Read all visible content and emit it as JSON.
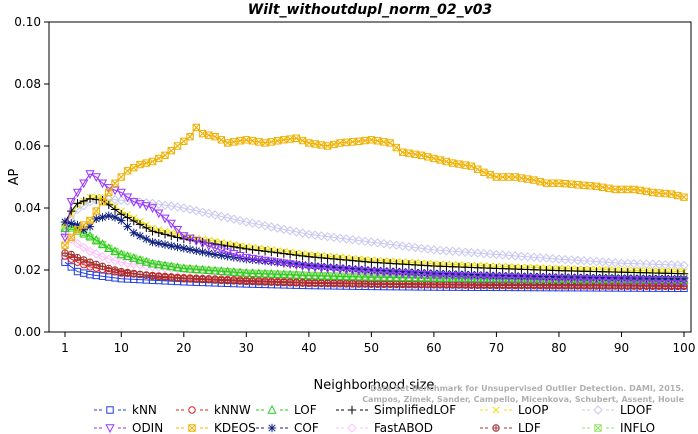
{
  "chart_data": {
    "type": "line",
    "title": "Wilt_withoutdupl_norm_02_v03",
    "xlabel": "Neighborhood size",
    "ylabel": "AP",
    "xlim": [
      1,
      100
    ],
    "ylim": [
      0.0,
      0.1
    ],
    "xticks": [
      1,
      10,
      20,
      30,
      40,
      50,
      60,
      70,
      80,
      90,
      100
    ],
    "yticks": [
      "0.00",
      "0.02",
      "0.04",
      "0.06",
      "0.08",
      "0.10"
    ],
    "grid": false,
    "legend_position": "bottom",
    "series": [
      {
        "name": "kNN",
        "color": "#1f3fe0",
        "marker": "square",
        "points": [
          [
            1,
            0.0225
          ],
          [
            2,
            0.021
          ],
          [
            3,
            0.0195
          ],
          [
            5,
            0.0185
          ],
          [
            10,
            0.0172
          ],
          [
            20,
            0.0162
          ],
          [
            30,
            0.0155
          ],
          [
            40,
            0.015
          ],
          [
            50,
            0.0147
          ],
          [
            60,
            0.0145
          ],
          [
            70,
            0.0144
          ],
          [
            80,
            0.0143
          ],
          [
            90,
            0.0142
          ],
          [
            100,
            0.0141
          ]
        ]
      },
      {
        "name": "kNNW",
        "color": "#e02020",
        "marker": "circle",
        "points": [
          [
            1,
            0.0245
          ],
          [
            2,
            0.0235
          ],
          [
            3,
            0.0225
          ],
          [
            5,
            0.021
          ],
          [
            10,
            0.019
          ],
          [
            20,
            0.0175
          ],
          [
            30,
            0.0167
          ],
          [
            40,
            0.016
          ],
          [
            50,
            0.0157
          ],
          [
            60,
            0.0155
          ],
          [
            70,
            0.0153
          ],
          [
            80,
            0.0152
          ],
          [
            90,
            0.0151
          ],
          [
            100,
            0.015
          ]
        ]
      },
      {
        "name": "LOF",
        "color": "#22cc22",
        "marker": "triangle",
        "points": [
          [
            1,
            0.0335
          ],
          [
            2,
            0.034
          ],
          [
            3,
            0.033
          ],
          [
            5,
            0.031
          ],
          [
            8,
            0.027
          ],
          [
            10,
            0.025
          ],
          [
            15,
            0.022
          ],
          [
            20,
            0.0205
          ],
          [
            30,
            0.019
          ],
          [
            40,
            0.0182
          ],
          [
            50,
            0.0177
          ],
          [
            60,
            0.0174
          ],
          [
            70,
            0.0172
          ],
          [
            80,
            0.017
          ],
          [
            90,
            0.0169
          ],
          [
            100,
            0.0168
          ]
        ]
      },
      {
        "name": "SimplifiedLOF",
        "color": "#000000",
        "marker": "plus",
        "points": [
          [
            1,
            0.0355
          ],
          [
            2,
            0.039
          ],
          [
            3,
            0.0415
          ],
          [
            5,
            0.043
          ],
          [
            7,
            0.0425
          ],
          [
            10,
            0.038
          ],
          [
            15,
            0.0325
          ],
          [
            20,
            0.03
          ],
          [
            30,
            0.0268
          ],
          [
            40,
            0.0243
          ],
          [
            50,
            0.0225
          ],
          [
            60,
            0.0213
          ],
          [
            70,
            0.0205
          ],
          [
            80,
            0.0198
          ],
          [
            90,
            0.0193
          ],
          [
            100,
            0.0188
          ]
        ]
      },
      {
        "name": "LoOP",
        "color": "#f0e000",
        "marker": "x",
        "points": [
          [
            1,
            0.0345
          ],
          [
            2,
            0.038
          ],
          [
            3,
            0.041
          ],
          [
            5,
            0.0435
          ],
          [
            7,
            0.0435
          ],
          [
            10,
            0.039
          ],
          [
            15,
            0.0335
          ],
          [
            20,
            0.031
          ],
          [
            30,
            0.0275
          ],
          [
            40,
            0.025
          ],
          [
            50,
            0.0232
          ],
          [
            60,
            0.022
          ],
          [
            70,
            0.0212
          ],
          [
            80,
            0.0205
          ],
          [
            90,
            0.02
          ],
          [
            100,
            0.0195
          ]
        ]
      },
      {
        "name": "LDOF",
        "color": "#c8c8f0",
        "marker": "diamond",
        "points": [
          [
            1,
            0.032
          ],
          [
            2,
            0.036
          ],
          [
            3,
            0.0395
          ],
          [
            5,
            0.042
          ],
          [
            7,
            0.043
          ],
          [
            10,
            0.0425
          ],
          [
            15,
            0.0415
          ],
          [
            20,
            0.04
          ],
          [
            30,
            0.0355
          ],
          [
            40,
            0.0315
          ],
          [
            50,
            0.029
          ],
          [
            60,
            0.0265
          ],
          [
            70,
            0.025
          ],
          [
            80,
            0.0235
          ],
          [
            90,
            0.0222
          ],
          [
            100,
            0.0215
          ]
        ]
      },
      {
        "name": "ODIN",
        "color": "#9933ff",
        "marker": "triangle-down",
        "points": [
          [
            1,
            0.0305
          ],
          [
            2,
            0.042
          ],
          [
            3,
            0.045
          ],
          [
            4,
            0.048
          ],
          [
            5,
            0.051
          ],
          [
            6,
            0.05
          ],
          [
            7,
            0.048
          ],
          [
            8,
            0.0465
          ],
          [
            10,
            0.045
          ],
          [
            12,
            0.042
          ],
          [
            15,
            0.04
          ],
          [
            18,
            0.035
          ],
          [
            20,
            0.031
          ],
          [
            25,
            0.027
          ],
          [
            30,
            0.024
          ],
          [
            40,
            0.021
          ],
          [
            50,
            0.0195
          ],
          [
            60,
            0.0183
          ],
          [
            70,
            0.0177
          ],
          [
            80,
            0.0172
          ],
          [
            90,
            0.0168
          ],
          [
            100,
            0.0165
          ]
        ]
      },
      {
        "name": "KDEOS",
        "color": "#f0b000",
        "marker": "square-x",
        "points": [
          [
            1,
            0.028
          ],
          [
            3,
            0.033
          ],
          [
            5,
            0.036
          ],
          [
            7,
            0.042
          ],
          [
            9,
            0.048
          ],
          [
            11,
            0.052
          ],
          [
            13,
            0.054
          ],
          [
            15,
            0.055
          ],
          [
            17,
            0.057
          ],
          [
            19,
            0.06
          ],
          [
            21,
            0.063
          ],
          [
            22,
            0.066
          ],
          [
            23,
            0.064
          ],
          [
            25,
            0.063
          ],
          [
            27,
            0.061
          ],
          [
            30,
            0.062
          ],
          [
            33,
            0.061
          ],
          [
            36,
            0.062
          ],
          [
            38,
            0.0625
          ],
          [
            40,
            0.061
          ],
          [
            43,
            0.06
          ],
          [
            45,
            0.061
          ],
          [
            48,
            0.0615
          ],
          [
            50,
            0.062
          ],
          [
            53,
            0.061
          ],
          [
            55,
            0.058
          ],
          [
            58,
            0.057
          ],
          [
            60,
            0.056
          ],
          [
            63,
            0.0545
          ],
          [
            66,
            0.0535
          ],
          [
            68,
            0.0515
          ],
          [
            70,
            0.05
          ],
          [
            73,
            0.05
          ],
          [
            76,
            0.049
          ],
          [
            78,
            0.048
          ],
          [
            80,
            0.048
          ],
          [
            83,
            0.0475
          ],
          [
            86,
            0.047
          ],
          [
            89,
            0.046
          ],
          [
            92,
            0.046
          ],
          [
            95,
            0.045
          ],
          [
            98,
            0.0445
          ],
          [
            100,
            0.0435
          ]
        ]
      },
      {
        "name": "COF",
        "color": "#102080",
        "marker": "star",
        "points": [
          [
            1,
            0.0355
          ],
          [
            2,
            0.035
          ],
          [
            3,
            0.0345
          ],
          [
            4,
            0.033
          ],
          [
            5,
            0.034
          ],
          [
            6,
            0.0365
          ],
          [
            7,
            0.037
          ],
          [
            8,
            0.0375
          ],
          [
            9,
            0.037
          ],
          [
            10,
            0.036
          ],
          [
            12,
            0.032
          ],
          [
            15,
            0.029
          ],
          [
            20,
            0.027
          ],
          [
            25,
            0.025
          ],
          [
            30,
            0.0235
          ],
          [
            40,
            0.0215
          ],
          [
            50,
            0.02
          ],
          [
            60,
            0.019
          ],
          [
            70,
            0.0183
          ],
          [
            80,
            0.0178
          ],
          [
            90,
            0.0175
          ],
          [
            100,
            0.0172
          ]
        ]
      },
      {
        "name": "FastABOD",
        "color": "#ffbfff",
        "marker": "diamond",
        "points": [
          [
            1,
            0.031
          ],
          [
            2,
            0.03
          ],
          [
            3,
            0.0285
          ],
          [
            5,
            0.026
          ],
          [
            8,
            0.0235
          ],
          [
            10,
            0.0225
          ],
          [
            15,
            0.021
          ],
          [
            20,
            0.0202
          ],
          [
            30,
            0.019
          ],
          [
            40,
            0.0183
          ],
          [
            50,
            0.0178
          ],
          [
            60,
            0.0175
          ],
          [
            70,
            0.0172
          ],
          [
            80,
            0.017
          ],
          [
            90,
            0.0168
          ],
          [
            100,
            0.0166
          ]
        ]
      },
      {
        "name": "LDF",
        "color": "#a03030",
        "marker": "circle-plus",
        "points": [
          [
            1,
            0.0255
          ],
          [
            2,
            0.025
          ],
          [
            3,
            0.024
          ],
          [
            5,
            0.0225
          ],
          [
            8,
            0.0205
          ],
          [
            10,
            0.0195
          ],
          [
            15,
            0.018
          ],
          [
            20,
            0.0172
          ],
          [
            30,
            0.0163
          ],
          [
            40,
            0.0157
          ],
          [
            50,
            0.0154
          ],
          [
            60,
            0.0152
          ],
          [
            70,
            0.015
          ],
          [
            80,
            0.0149
          ],
          [
            90,
            0.0148
          ],
          [
            100,
            0.0147
          ]
        ]
      },
      {
        "name": "INFLO",
        "color": "#90e060",
        "marker": "square-x",
        "points": [
          [
            1,
            0.0335
          ],
          [
            2,
            0.0335
          ],
          [
            3,
            0.0325
          ],
          [
            5,
            0.0305
          ],
          [
            8,
            0.027
          ],
          [
            10,
            0.025
          ],
          [
            15,
            0.022
          ],
          [
            20,
            0.0205
          ],
          [
            30,
            0.019
          ],
          [
            40,
            0.0183
          ],
          [
            50,
            0.0178
          ],
          [
            60,
            0.0175
          ],
          [
            70,
            0.0173
          ],
          [
            80,
            0.0171
          ],
          [
            90,
            0.017
          ],
          [
            100,
            0.0169
          ]
        ]
      }
    ]
  },
  "credit": {
    "line1": "Data Set Benchmark for Unsupervised Outlier Detection. DAMI, 2015.",
    "line2": "Campos, Zimek, Sander, Campello, Micenkova, Schubert, Assent, Houle"
  }
}
